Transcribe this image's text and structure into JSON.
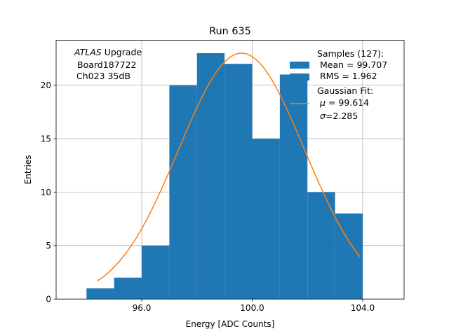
{
  "chart_data": {
    "type": "bar",
    "title": "Run 635",
    "xlabel": "Energy [ADC Counts]",
    "ylabel": "Entries",
    "xlim": [
      92.9,
      105.5
    ],
    "ylim": [
      0,
      24.2
    ],
    "xticks": [
      96.0,
      100.0,
      104.0
    ],
    "xtick_labels": [
      "96.0",
      "100.0",
      "104.0"
    ],
    "yticks": [
      0,
      5,
      10,
      15,
      20
    ],
    "ytick_labels": [
      "0",
      "5",
      "10",
      "15",
      "20"
    ],
    "grid": true,
    "bins": [
      {
        "lo": 94.0,
        "hi": 95.0,
        "count": 1
      },
      {
        "lo": 95.0,
        "hi": 96.0,
        "count": 2
      },
      {
        "lo": 96.0,
        "hi": 97.0,
        "count": 5
      },
      {
        "lo": 97.0,
        "hi": 98.0,
        "count": 20
      },
      {
        "lo": 98.0,
        "hi": 99.0,
        "count": 23
      },
      {
        "lo": 99.0,
        "hi": 100.0,
        "count": 22
      },
      {
        "lo": 100.0,
        "hi": 101.0,
        "count": 15
      },
      {
        "lo": 101.0,
        "hi": 102.0,
        "count": 21
      },
      {
        "lo": 102.0,
        "hi": 103.0,
        "count": 10
      },
      {
        "lo": 103.0,
        "hi": 104.0,
        "count": 8
      }
    ],
    "fit": {
      "mu": 99.614,
      "sigma": 2.285,
      "amplitude": 23.0,
      "x_range": [
        94.4,
        103.9
      ]
    },
    "colors": {
      "bars": "#1f77b4",
      "fit": "#ff7f0e",
      "grid": "#b0b0b0"
    },
    "annotation": {
      "atlas": "ATLAS",
      "line1_rest": " Upgrade",
      "line2": "Board187722",
      "line3": "Ch023 35dB"
    },
    "legend": {
      "samples_title": "Samples (127):",
      "mean": "Mean = 99.707",
      "rms": "RMS = 1.962",
      "fit_title": "Gaussian Fit:",
      "mu_symbol": "μ",
      "mu_value": " = 99.614",
      "sigma_symbol": "σ",
      "sigma_value": "=2.285"
    }
  }
}
